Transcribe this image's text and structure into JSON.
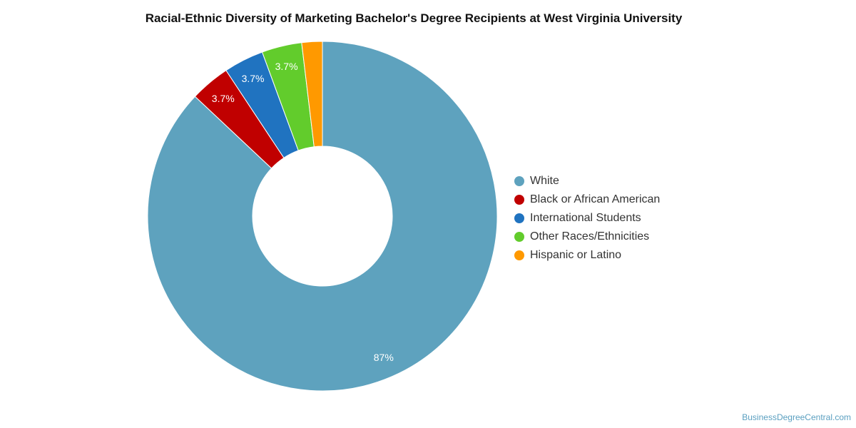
{
  "chart_data": {
    "type": "pie",
    "title": "Racial-Ethnic Diversity of Marketing Bachelor's Degree Recipients at West Virginia University",
    "donut": true,
    "legend_position": "right",
    "slices": [
      {
        "name": "White",
        "value": 87,
        "label": "87%",
        "color": "#5ea2be"
      },
      {
        "name": "Black or African American",
        "value": 3.7,
        "label": "3.7%",
        "color": "#c00000"
      },
      {
        "name": "International Students",
        "value": 3.7,
        "label": "3.7%",
        "color": "#2073c0"
      },
      {
        "name": "Other Races/Ethnicities",
        "value": 3.7,
        "label": "3.7%",
        "color": "#62cc2c"
      },
      {
        "name": "Hispanic or Latino",
        "value": 1.9,
        "label": "",
        "color": "#ff9900"
      }
    ]
  },
  "source": "BusinessDegreeCentral.com"
}
